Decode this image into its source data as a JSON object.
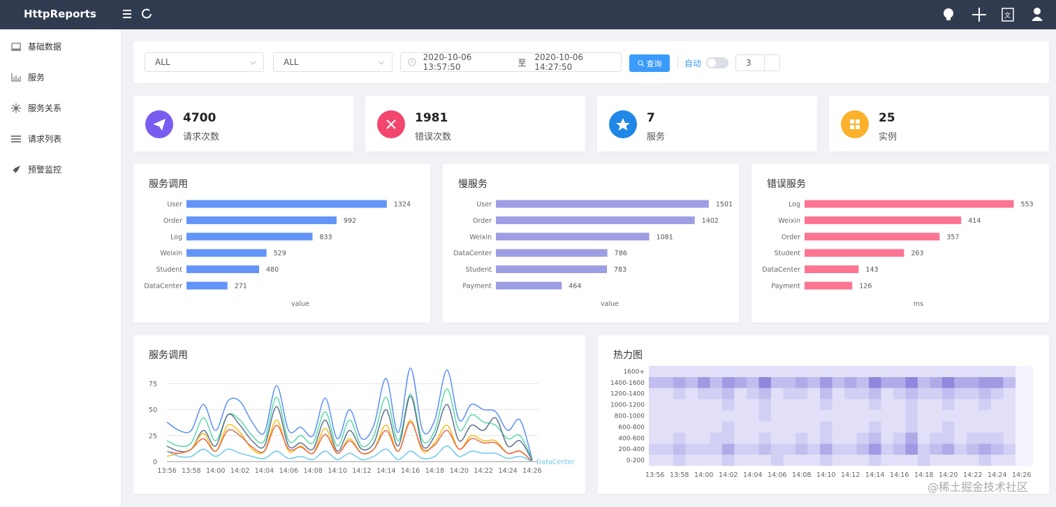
{
  "header": {
    "title": "HttpReports"
  },
  "sidebar": {
    "items": [
      "基础数据",
      "服务",
      "服务关系",
      "请求列表",
      "预警监控"
    ]
  },
  "filters": {
    "service": "ALL",
    "instance": "ALL",
    "start": "2020-10-06 13:57:50",
    "separator": "至",
    "end": "2020-10-06 14:27:50",
    "query": "查询",
    "auto": "自动",
    "interval": 3
  },
  "stats": [
    {
      "value": 4700,
      "label": "请求次数"
    },
    {
      "value": 1981,
      "label": "错误次数"
    },
    {
      "value": 7,
      "label": "服务"
    },
    {
      "value": 25,
      "label": "实例"
    }
  ],
  "chart_data": [
    {
      "type": "bar",
      "orientation": "horizontal",
      "title": "服务调用",
      "categories": [
        "User",
        "Order",
        "Log",
        "Weixin",
        "Student",
        "DataCenter"
      ],
      "values": [
        1324,
        992,
        833,
        529,
        480,
        271
      ],
      "color": "#6395f9",
      "xlabel": "value",
      "xlim": [
        0,
        1500
      ]
    },
    {
      "type": "bar",
      "orientation": "horizontal",
      "title": "慢服务",
      "categories": [
        "User",
        "Order",
        "Weixin",
        "DataCenter",
        "Student",
        "Payment"
      ],
      "values": [
        1501,
        1402,
        1081,
        786,
        783,
        464
      ],
      "color": "#9d9ee3",
      "xlabel": "value",
      "xlim": [
        0,
        1600
      ]
    },
    {
      "type": "bar",
      "orientation": "horizontal",
      "title": "错误服务",
      "categories": [
        "Log",
        "Weixin",
        "Order",
        "Student",
        "DataCenter",
        "Payment"
      ],
      "values": [
        553,
        414,
        357,
        263,
        143,
        126
      ],
      "color": "#fb7592",
      "xlabel": "ms",
      "xlim": [
        0,
        600
      ]
    },
    {
      "type": "line",
      "title": "服务调用",
      "smooth": true,
      "grid": true,
      "categories": [
        "13:56",
        null,
        "13:58",
        null,
        "14:00",
        null,
        "14:02",
        null,
        "14:04",
        null,
        "14:06",
        null,
        "14:08",
        null,
        "14:10",
        null,
        "14:12",
        null,
        "14:14",
        null,
        "14:16",
        null,
        "14:18",
        null,
        "14:20",
        null,
        "14:22",
        null,
        "14:24",
        null,
        "14:26"
      ],
      "ylim": [
        0,
        90
      ],
      "yticks": [
        0,
        25,
        50,
        75
      ],
      "series": [
        {
          "color": "#5b8ff9",
          "values": [
            38,
            30,
            30,
            55,
            30,
            58,
            58,
            38,
            28,
            73,
            30,
            33,
            25,
            61,
            22,
            50,
            22,
            35,
            80,
            28,
            90,
            30,
            40,
            88,
            40,
            55,
            50,
            48,
            30,
            40,
            2
          ]
        },
        {
          "color": "#5ad8a6",
          "values": [
            20,
            15,
            18,
            42,
            20,
            45,
            40,
            25,
            20,
            62,
            20,
            25,
            18,
            48,
            15,
            40,
            15,
            25,
            62,
            20,
            65,
            20,
            30,
            70,
            30,
            45,
            38,
            35,
            22,
            25,
            2
          ]
        },
        {
          "color": "#5d7092",
          "values": [
            15,
            10,
            12,
            30,
            15,
            45,
            35,
            20,
            15,
            53,
            15,
            18,
            12,
            40,
            10,
            30,
            12,
            18,
            50,
            15,
            63,
            15,
            25,
            55,
            20,
            35,
            30,
            42,
            15,
            20,
            1
          ]
        },
        {
          "color": "#f6bd16",
          "values": [
            5,
            8,
            12,
            27,
            10,
            35,
            28,
            12,
            10,
            40,
            10,
            15,
            8,
            32,
            8,
            22,
            8,
            12,
            35,
            10,
            40,
            10,
            18,
            35,
            12,
            25,
            20,
            20,
            8,
            10,
            0
          ]
        },
        {
          "color": "#e8684a",
          "values": [
            10,
            8,
            12,
            22,
            10,
            30,
            25,
            14,
            10,
            35,
            12,
            14,
            8,
            26,
            8,
            20,
            8,
            12,
            30,
            10,
            38,
            12,
            16,
            30,
            12,
            22,
            18,
            18,
            8,
            10,
            0
          ]
        },
        {
          "name": "DataCenter",
          "color": "#6dc8ec",
          "values": [
            10,
            5,
            5,
            12,
            5,
            12,
            8,
            5,
            3,
            10,
            3,
            5,
            2,
            10,
            2,
            8,
            2,
            5,
            12,
            2,
            10,
            3,
            5,
            15,
            5,
            10,
            8,
            8,
            3,
            5,
            0
          ]
        }
      ]
    },
    {
      "type": "heatmap",
      "title": "热力图",
      "categories": [
        "13:56",
        null,
        "13:58",
        null,
        "14:00",
        null,
        "14:02",
        null,
        "14:04",
        null,
        "14:06",
        null,
        "14:08",
        null,
        "14:10",
        null,
        "14:12",
        null,
        "14:14",
        null,
        "14:16",
        null,
        "14:18",
        null,
        "14:20",
        null,
        "14:22",
        null,
        "14:24",
        null,
        "14:26"
      ],
      "ycategories": [
        "0-200",
        "200-400",
        "400-600",
        "600-800",
        "800-1000",
        "1000-1200",
        "1200-1400",
        "1400-1600",
        "1600+"
      ],
      "colors": [
        "#f3f2fd",
        "#8e88de"
      ],
      "values": [
        [
          1,
          1,
          2,
          1,
          1,
          1,
          2,
          1,
          1,
          1,
          2,
          1,
          1,
          1,
          2,
          1,
          1,
          1,
          2,
          1,
          1,
          1,
          2,
          1,
          1,
          1,
          1,
          2,
          1,
          1,
          0
        ],
        [
          2,
          2,
          3,
          2,
          2,
          2,
          4,
          2,
          2,
          3,
          2,
          2,
          3,
          2,
          4,
          2,
          2,
          3,
          5,
          2,
          3,
          5,
          2,
          3,
          4,
          2,
          3,
          4,
          3,
          2,
          0
        ],
        [
          1,
          1,
          2,
          1,
          1,
          2,
          2,
          1,
          1,
          2,
          1,
          1,
          2,
          1,
          2,
          1,
          1,
          2,
          3,
          1,
          2,
          4,
          1,
          2,
          2,
          1,
          2,
          2,
          2,
          1,
          0
        ],
        [
          1,
          1,
          1,
          1,
          1,
          1,
          2,
          1,
          1,
          1,
          1,
          1,
          1,
          1,
          2,
          1,
          1,
          1,
          2,
          1,
          1,
          2,
          1,
          1,
          2,
          1,
          1,
          1,
          1,
          1,
          0
        ],
        [
          1,
          1,
          1,
          1,
          1,
          1,
          1,
          1,
          1,
          2,
          1,
          1,
          1,
          1,
          1,
          1,
          1,
          1,
          1,
          1,
          1,
          2,
          1,
          1,
          1,
          1,
          1,
          1,
          1,
          1,
          0
        ],
        [
          1,
          1,
          1,
          1,
          1,
          1,
          2,
          1,
          1,
          2,
          1,
          1,
          1,
          1,
          2,
          1,
          1,
          1,
          2,
          1,
          1,
          2,
          1,
          1,
          2,
          1,
          1,
          2,
          1,
          1,
          0
        ],
        [
          1,
          1,
          2,
          1,
          2,
          2,
          3,
          1,
          2,
          3,
          1,
          2,
          2,
          1,
          3,
          1,
          2,
          2,
          3,
          1,
          2,
          3,
          2,
          2,
          3,
          2,
          2,
          3,
          2,
          1,
          0
        ],
        [
          3,
          3,
          4,
          3,
          5,
          3,
          5,
          4,
          3,
          6,
          3,
          3,
          4,
          3,
          5,
          3,
          4,
          3,
          6,
          4,
          4,
          6,
          3,
          4,
          6,
          4,
          4,
          5,
          5,
          3,
          0
        ],
        [
          1,
          1,
          1,
          1,
          1,
          1,
          1,
          1,
          1,
          1,
          1,
          1,
          1,
          1,
          1,
          1,
          1,
          1,
          1,
          1,
          1,
          1,
          1,
          1,
          1,
          1,
          1,
          1,
          1,
          1,
          0
        ]
      ]
    }
  ],
  "watermark": "@稀土掘金技术社区"
}
